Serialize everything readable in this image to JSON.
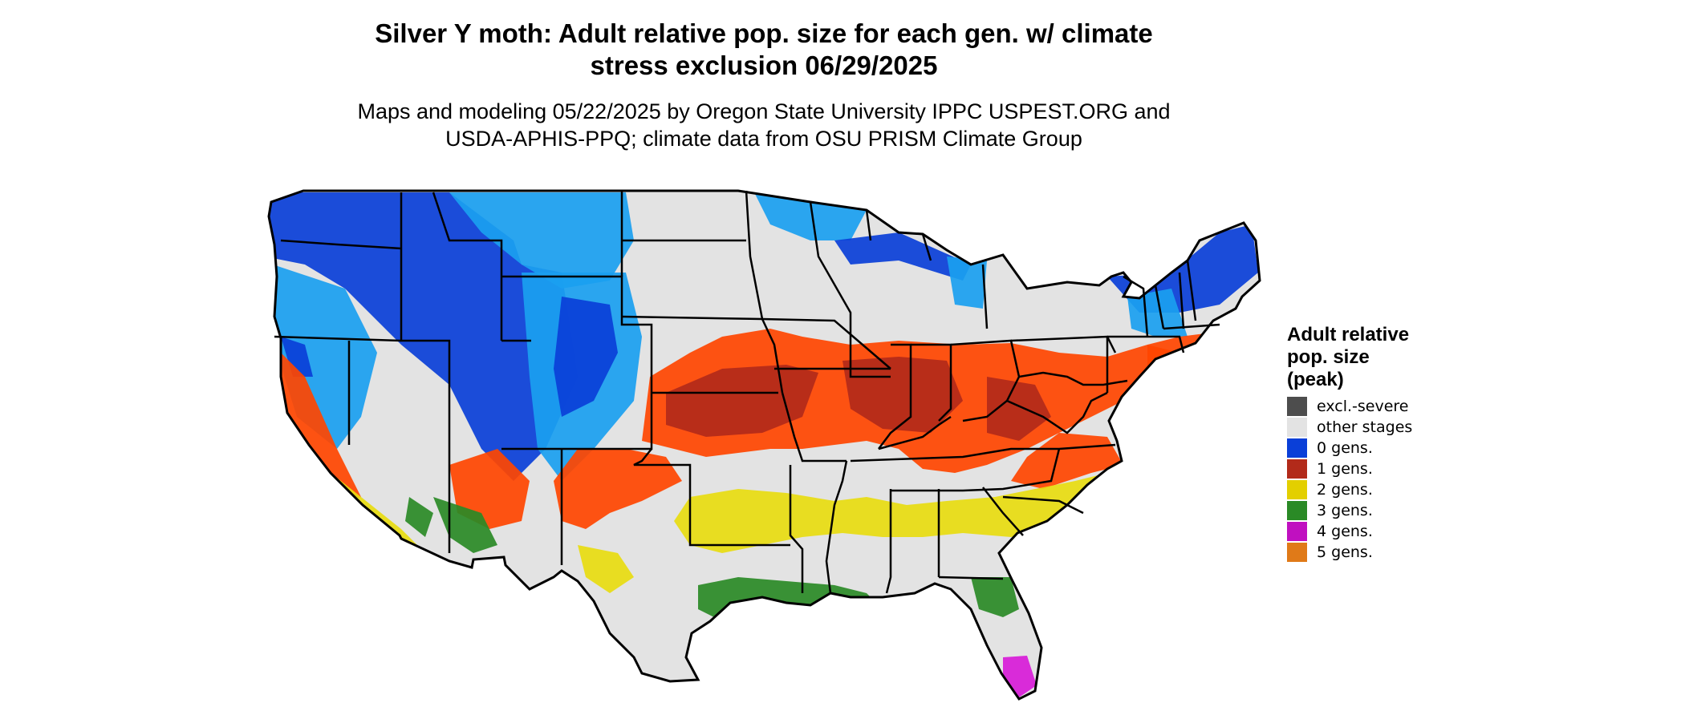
{
  "title": {
    "line1": "Silver Y moth: Adult relative pop. size for each gen. w/ climate",
    "line2": "stress exclusion 06/29/2025"
  },
  "subtitle": {
    "line1": "Maps and modeling 05/22/2025 by Oregon State University IPPC USPEST.ORG and",
    "line2": "USDA-APHIS-PPQ; climate data from OSU PRISM Climate Group"
  },
  "legend": {
    "title_lines": [
      "Adult relative",
      "pop. size",
      "(peak)"
    ],
    "items": [
      {
        "label": "excl.-severe",
        "color": "#4d4d4d"
      },
      {
        "label": "other stages",
        "color": "#e3e3e3"
      },
      {
        "label": "0 gens.",
        "color": "#0a3fd8"
      },
      {
        "label": "1 gens.",
        "color": "#b22a1a"
      },
      {
        "label": "2 gens.",
        "color": "#e3cf00"
      },
      {
        "label": "3 gens.",
        "color": "#2a8a26"
      },
      {
        "label": "4 gens.",
        "color": "#c010c0"
      },
      {
        "label": "5 gens.",
        "color": "#e07a18"
      }
    ]
  },
  "map_colors": {
    "background_land": "#e3e3e3",
    "zero_gens_dark": "#0a3fd8",
    "zero_gens_light": "#1aa0f0",
    "one_gen_dark": "#b22a1a",
    "one_gen_bright": "#ff4500",
    "two_gens": "#e8dc10",
    "three_gens": "#2a8a26",
    "four_gens": "#d81bd8",
    "borders": "#000000"
  }
}
